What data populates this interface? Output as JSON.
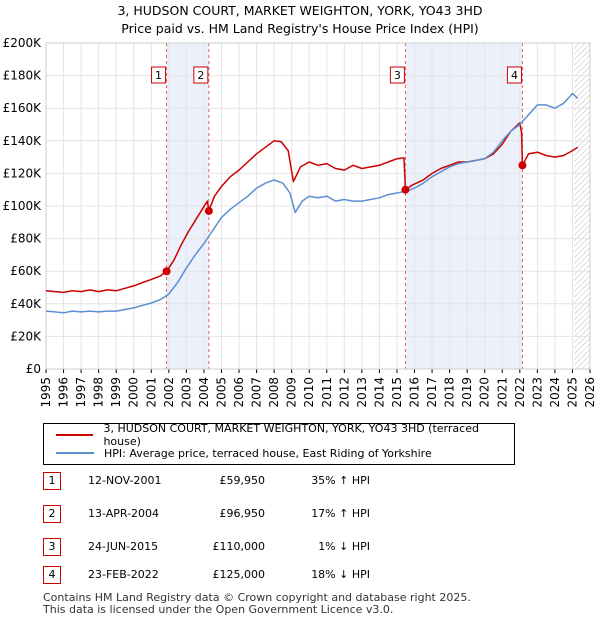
{
  "title": "3, HUDSON COURT, MARKET WEIGHTON, YORK, YO43 3HD",
  "subtitle": "Price paid vs. HM Land Registry's House Price Index (HPI)",
  "chart_data": {
    "type": "line",
    "title": "3, HUDSON COURT, MARKET WEIGHTON, YORK, YO43 3HD",
    "subtitle": "Price paid vs. HM Land Registry's House Price Index (HPI)",
    "xlabel": "",
    "ylabel": "",
    "xlim": [
      1995,
      2026
    ],
    "ylim": [
      0,
      200000
    ],
    "grid": true,
    "y_ticks": [
      {
        "value": 0,
        "label": "£0"
      },
      {
        "value": 20000,
        "label": "£20K"
      },
      {
        "value": 40000,
        "label": "£40K"
      },
      {
        "value": 60000,
        "label": "£60K"
      },
      {
        "value": 80000,
        "label": "£80K"
      },
      {
        "value": 100000,
        "label": "£100K"
      },
      {
        "value": 120000,
        "label": "£120K"
      },
      {
        "value": 140000,
        "label": "£140K"
      },
      {
        "value": 160000,
        "label": "£160K"
      },
      {
        "value": 180000,
        "label": "£180K"
      },
      {
        "value": 200000,
        "label": "£200K"
      }
    ],
    "x_ticks": [
      "1995",
      "1996",
      "1997",
      "1998",
      "1999",
      "2000",
      "2001",
      "2002",
      "2003",
      "2004",
      "2005",
      "2006",
      "2007",
      "2008",
      "2009",
      "2010",
      "2011",
      "2012",
      "2013",
      "2014",
      "2015",
      "2016",
      "2017",
      "2018",
      "2019",
      "2020",
      "2021",
      "2022",
      "2023",
      "2024",
      "2025",
      "2026"
    ],
    "shaded_periods": [
      [
        2001.87,
        2004.28
      ],
      [
        2015.48,
        2022.15
      ]
    ],
    "future_hatch_start": 2025.1,
    "series": [
      {
        "name": "3, HUDSON COURT, MARKET WEIGHTON, YORK, YO43 3HD (terraced house)",
        "color": "#cc0000",
        "points": [
          [
            1995.0,
            48000
          ],
          [
            1995.5,
            47500
          ],
          [
            1996.0,
            47000
          ],
          [
            1996.5,
            48000
          ],
          [
            1997.0,
            47500
          ],
          [
            1997.5,
            48500
          ],
          [
            1998.0,
            47500
          ],
          [
            1998.5,
            48500
          ],
          [
            1999.0,
            48000
          ],
          [
            1999.5,
            49500
          ],
          [
            2000.0,
            51000
          ],
          [
            2000.5,
            53000
          ],
          [
            2001.0,
            55000
          ],
          [
            2001.5,
            57000
          ],
          [
            2001.87,
            59950
          ],
          [
            2002.3,
            67000
          ],
          [
            2002.7,
            76000
          ],
          [
            2003.1,
            84000
          ],
          [
            2003.5,
            91000
          ],
          [
            2003.9,
            98000
          ],
          [
            2004.2,
            103000
          ],
          [
            2004.28,
            96950
          ],
          [
            2004.6,
            106000
          ],
          [
            2005.0,
            112000
          ],
          [
            2005.5,
            118000
          ],
          [
            2006.0,
            122000
          ],
          [
            2006.5,
            127000
          ],
          [
            2007.0,
            132000
          ],
          [
            2007.5,
            136000
          ],
          [
            2008.0,
            140000
          ],
          [
            2008.4,
            139500
          ],
          [
            2008.8,
            134000
          ],
          [
            2009.1,
            115000
          ],
          [
            2009.5,
            124000
          ],
          [
            2010.0,
            127000
          ],
          [
            2010.5,
            125000
          ],
          [
            2011.0,
            126000
          ],
          [
            2011.5,
            123000
          ],
          [
            2012.0,
            122000
          ],
          [
            2012.5,
            125000
          ],
          [
            2013.0,
            123000
          ],
          [
            2013.5,
            124000
          ],
          [
            2014.0,
            125000
          ],
          [
            2014.5,
            127000
          ],
          [
            2015.0,
            129000
          ],
          [
            2015.4,
            129500
          ],
          [
            2015.48,
            110000
          ],
          [
            2015.9,
            113000
          ],
          [
            2016.5,
            116000
          ],
          [
            2017.0,
            120000
          ],
          [
            2017.5,
            123000
          ],
          [
            2018.0,
            125000
          ],
          [
            2018.5,
            127000
          ],
          [
            2019.0,
            127000
          ],
          [
            2019.5,
            128000
          ],
          [
            2020.0,
            129000
          ],
          [
            2020.5,
            132000
          ],
          [
            2021.0,
            138000
          ],
          [
            2021.5,
            146000
          ],
          [
            2022.0,
            151000
          ],
          [
            2022.1,
            145000
          ],
          [
            2022.15,
            125000
          ],
          [
            2022.5,
            132000
          ],
          [
            2023.0,
            133000
          ],
          [
            2023.5,
            131000
          ],
          [
            2024.0,
            130000
          ],
          [
            2024.5,
            131000
          ],
          [
            2025.0,
            134000
          ],
          [
            2025.3,
            136000
          ]
        ]
      },
      {
        "name": "HPI: Average price, terraced house, East Riding of Yorkshire",
        "color": "#5b8fd0",
        "points": [
          [
            1995.0,
            35500
          ],
          [
            1995.5,
            35000
          ],
          [
            1996.0,
            34500
          ],
          [
            1996.5,
            35500
          ],
          [
            1997.0,
            35000
          ],
          [
            1997.5,
            35500
          ],
          [
            1998.0,
            35000
          ],
          [
            1998.5,
            35500
          ],
          [
            1999.0,
            35500
          ],
          [
            1999.5,
            36500
          ],
          [
            2000.0,
            37500
          ],
          [
            2000.5,
            39000
          ],
          [
            2001.0,
            40500
          ],
          [
            2001.5,
            42500
          ],
          [
            2002.0,
            46000
          ],
          [
            2002.5,
            53000
          ],
          [
            2003.0,
            62000
          ],
          [
            2003.5,
            70000
          ],
          [
            2004.0,
            77000
          ],
          [
            2004.5,
            85000
          ],
          [
            2005.0,
            93000
          ],
          [
            2005.5,
            98000
          ],
          [
            2006.0,
            102000
          ],
          [
            2006.5,
            106000
          ],
          [
            2007.0,
            111000
          ],
          [
            2007.5,
            114000
          ],
          [
            2008.0,
            116000
          ],
          [
            2008.5,
            114000
          ],
          [
            2008.9,
            108000
          ],
          [
            2009.2,
            96000
          ],
          [
            2009.6,
            103000
          ],
          [
            2010.0,
            106000
          ],
          [
            2010.5,
            105000
          ],
          [
            2011.0,
            106000
          ],
          [
            2011.5,
            103000
          ],
          [
            2012.0,
            104000
          ],
          [
            2012.5,
            103000
          ],
          [
            2013.0,
            103000
          ],
          [
            2013.5,
            104000
          ],
          [
            2014.0,
            105000
          ],
          [
            2014.5,
            107000
          ],
          [
            2015.0,
            108000
          ],
          [
            2015.5,
            109000
          ],
          [
            2016.0,
            111000
          ],
          [
            2016.5,
            114000
          ],
          [
            2017.0,
            118000
          ],
          [
            2017.5,
            121000
          ],
          [
            2018.0,
            124000
          ],
          [
            2018.5,
            126000
          ],
          [
            2019.0,
            127000
          ],
          [
            2019.5,
            128000
          ],
          [
            2020.0,
            129000
          ],
          [
            2020.5,
            133000
          ],
          [
            2021.0,
            140000
          ],
          [
            2021.5,
            146000
          ],
          [
            2022.0,
            150000
          ],
          [
            2022.5,
            156000
          ],
          [
            2023.0,
            162000
          ],
          [
            2023.5,
            162000
          ],
          [
            2024.0,
            160000
          ],
          [
            2024.5,
            163000
          ],
          [
            2025.0,
            169000
          ],
          [
            2025.3,
            166000
          ]
        ]
      }
    ],
    "sales": [
      {
        "id": "1",
        "x": 2001.87,
        "value": 59950,
        "date": "12-NOV-2001",
        "price": "£59,950",
        "hpi": "35% ↑ HPI"
      },
      {
        "id": "2",
        "x": 2004.28,
        "value": 96950,
        "date": "13-APR-2004",
        "price": "£96,950",
        "hpi": "17% ↑ HPI"
      },
      {
        "id": "3",
        "x": 2015.48,
        "value": 110000,
        "date": "24-JUN-2015",
        "price": "£110,000",
        "hpi": "1% ↓ HPI"
      },
      {
        "id": "4",
        "x": 2022.15,
        "value": 125000,
        "date": "23-FEB-2022",
        "price": "£125,000",
        "hpi": "18% ↓ HPI"
      }
    ]
  },
  "legend": {
    "price_paid_label": "3, HUDSON COURT, MARKET WEIGHTON, YORK, YO43 3HD (terraced house)",
    "hpi_label": "HPI: Average price, terraced house, East Riding of Yorkshire"
  },
  "footer": {
    "line1": "Contains HM Land Registry data © Crown copyright and database right 2025.",
    "line2": "This data is licensed under the Open Government Licence v3.0."
  }
}
